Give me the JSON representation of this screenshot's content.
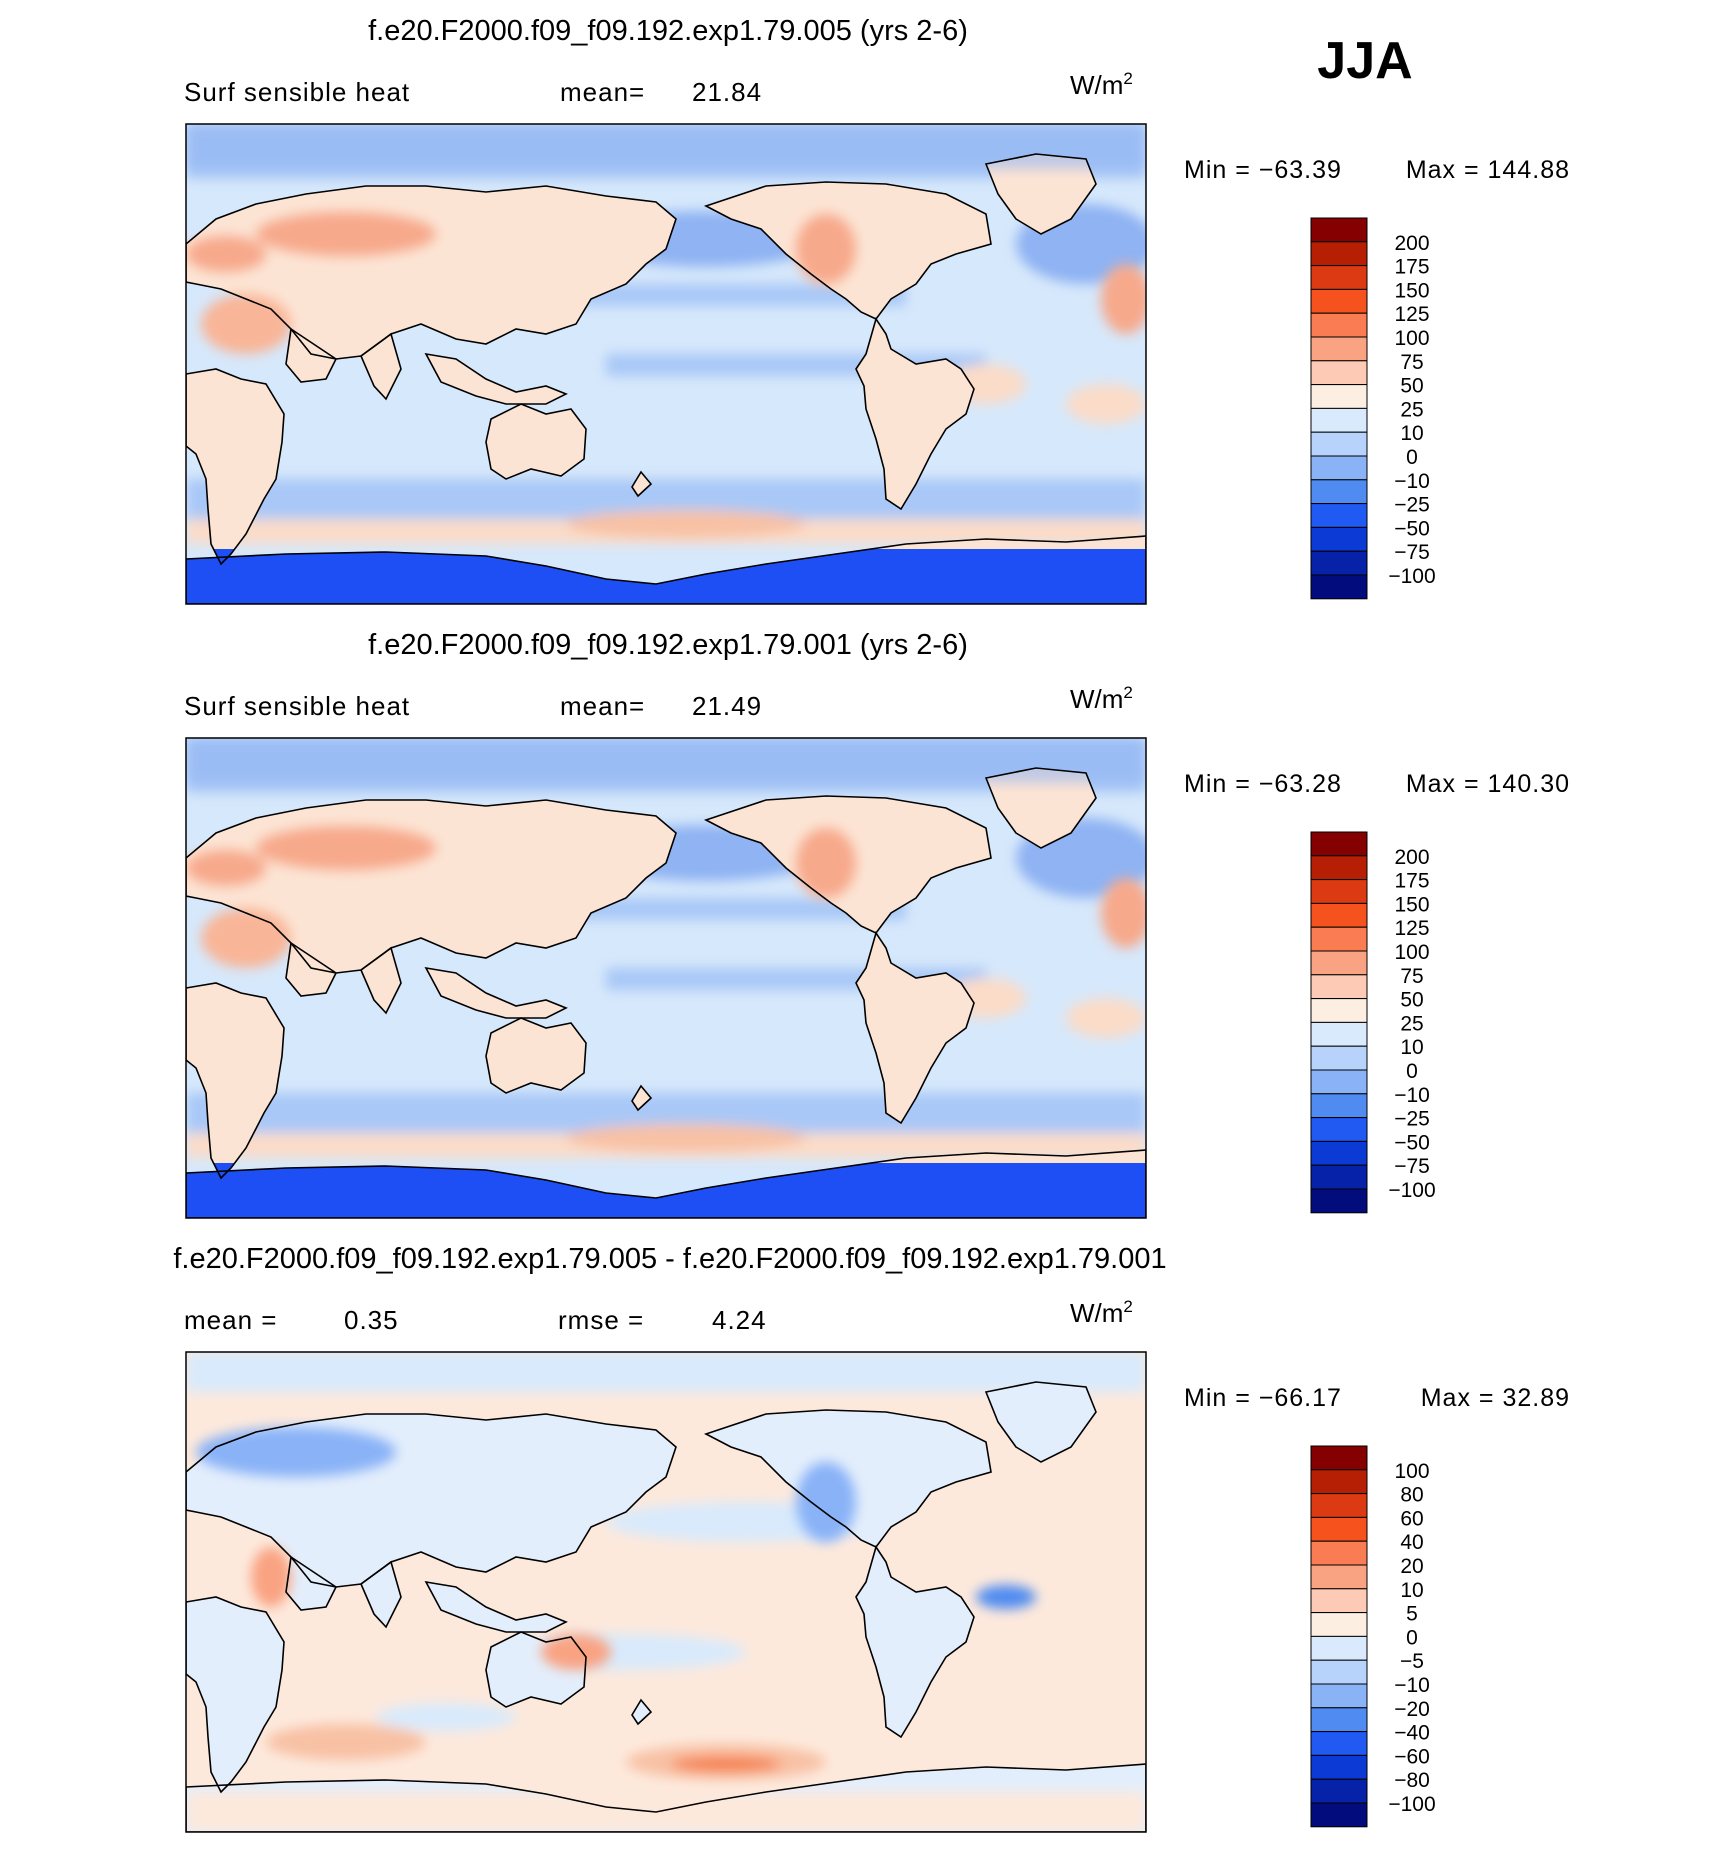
{
  "season": "JJA",
  "colors": {
    "ocean_base": "#d6e8fb",
    "land_warm": "#fce4d4",
    "land_hot": "#f7a98b",
    "cold_band": "#a9c8f7",
    "antarctic": "#1e4ff5",
    "coast": "#000000"
  },
  "panels": [
    {
      "title": "f.e20.F2000.f09_f09.192.exp1.79.005 (yrs 2-6)",
      "left_label": "Surf sensible heat",
      "mean_label": "mean=",
      "mean_value": "21.84",
      "units_base": "W/m",
      "units_exp": "2",
      "min_label": "Min = −63.39",
      "max_label": "Max = 144.88",
      "field_min": -63.39,
      "field_max": 144.88,
      "colorbar": {
        "labels": [
          "200",
          "175",
          "150",
          "125",
          "100",
          "75",
          "50",
          "25",
          "10",
          "0",
          "−10",
          "−25",
          "−50",
          "−75",
          "−100"
        ],
        "colors": [
          "#850000",
          "#b71f05",
          "#dc3a12",
          "#f6521d",
          "#f97c52",
          "#f9a382",
          "#fccab5",
          "#fdeee2",
          "#d8eafc",
          "#b7d2fb",
          "#89b2f7",
          "#4f8bf1",
          "#2159f3",
          "#0b3ad5",
          "#0522a8",
          "#020c7c"
        ]
      }
    },
    {
      "title": "f.e20.F2000.f09_f09.192.exp1.79.001 (yrs 2-6)",
      "left_label": "Surf sensible heat",
      "mean_label": "mean=",
      "mean_value": "21.49",
      "units_base": "W/m",
      "units_exp": "2",
      "min_label": "Min = −63.28",
      "max_label": "Max = 140.30",
      "field_min": -63.28,
      "field_max": 140.3,
      "colorbar": {
        "labels": [
          "200",
          "175",
          "150",
          "125",
          "100",
          "75",
          "50",
          "25",
          "10",
          "0",
          "−10",
          "−25",
          "−50",
          "−75",
          "−100"
        ],
        "colors": [
          "#850000",
          "#b71f05",
          "#dc3a12",
          "#f6521d",
          "#f97c52",
          "#f9a382",
          "#fccab5",
          "#fdeee2",
          "#d8eafc",
          "#b7d2fb",
          "#89b2f7",
          "#4f8bf1",
          "#2159f3",
          "#0b3ad5",
          "#0522a8",
          "#020c7c"
        ]
      }
    },
    {
      "title": "f.e20.F2000.f09_f09.192.exp1.79.005 - f.e20.F2000.f09_f09.192.exp1.79.001",
      "left_label": "mean =",
      "mean_label": "",
      "mean_value": "0.35",
      "rmse_label": "rmse =",
      "rmse_value": "4.24",
      "units_base": "W/m",
      "units_exp": "2",
      "min_label": "Min = −66.17",
      "max_label": "Max = 32.89",
      "field_min": -66.17,
      "field_max": 32.89,
      "colorbar": {
        "labels": [
          "100",
          "80",
          "60",
          "40",
          "20",
          "10",
          "5",
          "0",
          "−5",
          "−10",
          "−20",
          "−40",
          "−60",
          "−80",
          "−100"
        ],
        "colors": [
          "#850000",
          "#b71f05",
          "#dc3a12",
          "#f6521d",
          "#f97c52",
          "#f9a382",
          "#fccab5",
          "#fdeee2",
          "#d8eafc",
          "#b7d2fb",
          "#89b2f7",
          "#4f8bf1",
          "#2159f3",
          "#0b3ad5",
          "#0522a8",
          "#020c7c"
        ]
      }
    }
  ]
}
